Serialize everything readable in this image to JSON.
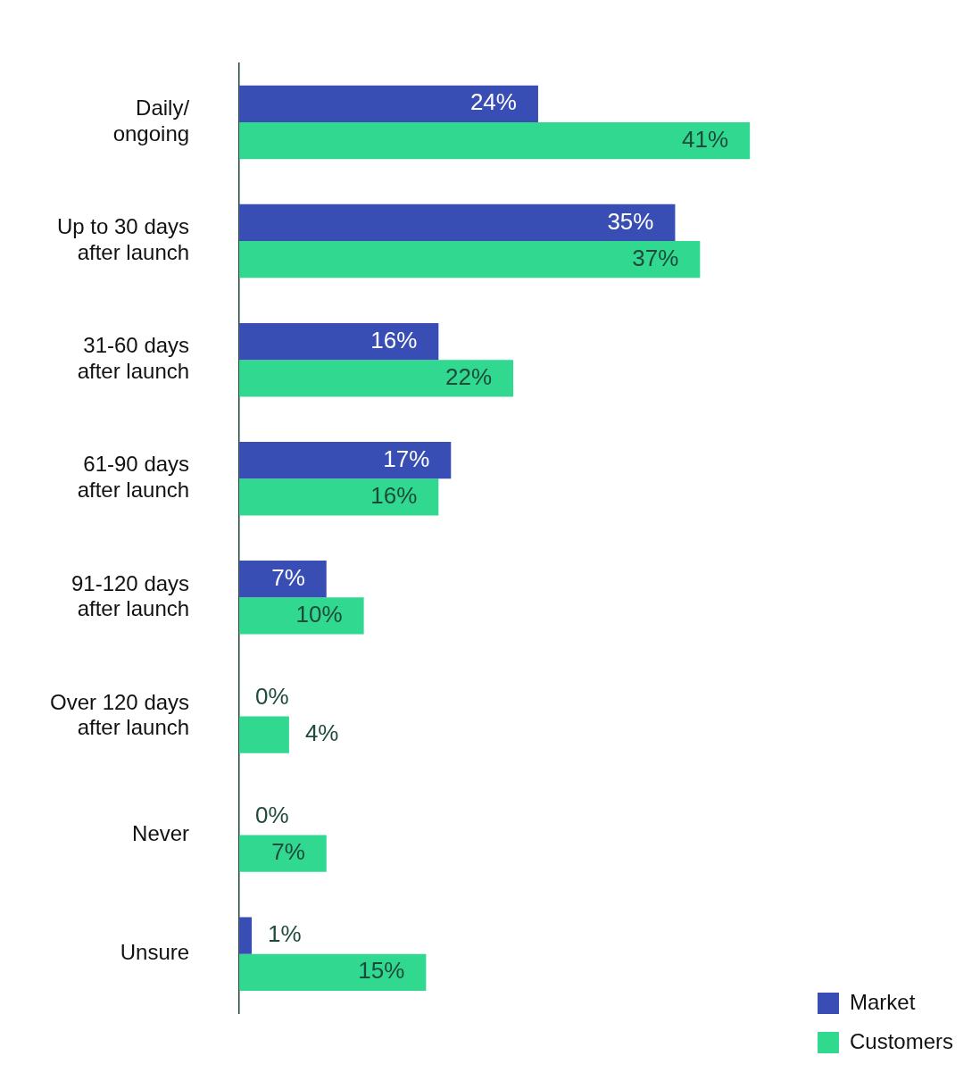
{
  "chart_data": {
    "type": "bar",
    "orientation": "horizontal",
    "categories": [
      "Daily/ ongoing",
      "Up to 30 days after launch",
      "31-60 days after launch",
      "61-90 days after launch",
      "91-120 days after launch",
      "Over 120 days after launch",
      "Never",
      "Unsure"
    ],
    "series": [
      {
        "name": "Market",
        "color": "#384eb4",
        "values": [
          24,
          35,
          16,
          17,
          7,
          0,
          0,
          1
        ],
        "value_labels": [
          "24%",
          "35%",
          "16%",
          "17%",
          "7%",
          "0%",
          "0%",
          "1%"
        ]
      },
      {
        "name": "Customers",
        "color": "#31d890",
        "values": [
          41,
          37,
          22,
          16,
          10,
          4,
          7,
          15
        ],
        "value_labels": [
          "41%",
          "37%",
          "22%",
          "16%",
          "10%",
          "4%",
          "7%",
          "15%"
        ]
      }
    ],
    "legend": "bottom right"
  }
}
